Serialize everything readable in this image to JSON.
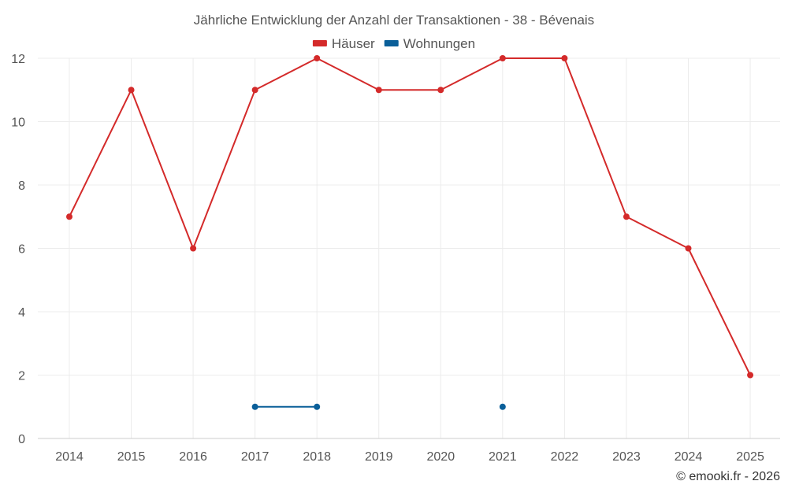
{
  "chart_data": {
    "type": "line",
    "title": "Jährliche Entwicklung der Anzahl der Transaktionen - 38 - Bévenais",
    "categories": [
      "2014",
      "2015",
      "2016",
      "2017",
      "2018",
      "2019",
      "2020",
      "2021",
      "2022",
      "2023",
      "2024",
      "2025"
    ],
    "series": [
      {
        "name": "Häuser",
        "color": "#d42a2a",
        "values": [
          7,
          11,
          6,
          11,
          12,
          11,
          11,
          12,
          12,
          7,
          6,
          2
        ]
      },
      {
        "name": "Wohnungen",
        "color": "#0a5f99",
        "values": [
          null,
          null,
          null,
          1,
          1,
          null,
          null,
          1,
          null,
          null,
          null,
          null
        ]
      }
    ],
    "ylim": [
      0,
      12
    ],
    "yticks": [
      0,
      2,
      4,
      6,
      8,
      10,
      12
    ],
    "xlabel": "",
    "ylabel": "",
    "grid": true,
    "legend": "top-center"
  },
  "credit": "© emooki.fr - 2026"
}
